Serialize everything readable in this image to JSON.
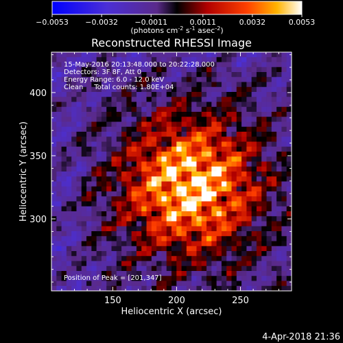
{
  "chart_data": {
    "type": "heatmap",
    "title": "Reconstructed RHESSI Image",
    "xlabel": "Heliocentric X (arcsec)",
    "ylabel": "Heliocentric Y (arcsec)",
    "xlim": [
      102,
      290
    ],
    "ylim": [
      243,
      432
    ],
    "x_ticks": [
      150,
      200,
      250
    ],
    "x_tick_labels": [
      "150",
      "200",
      "250"
    ],
    "y_ticks": [
      300,
      350,
      400
    ],
    "y_tick_labels": [
      "300",
      "350",
      "400"
    ],
    "colorbar": {
      "min": -0.0053,
      "max": 0.0053,
      "tick_values": [
        -0.0053,
        -0.0032,
        -0.0011,
        0.0011,
        0.0032,
        0.0053
      ],
      "tick_labels": [
        "−0.0053",
        "−0.0032",
        "−0.0011",
        "0.0011",
        "0.0032",
        "0.0053"
      ],
      "unit_main": "(photons cm",
      "unit_sup1": "-2",
      "unit_mid": " s",
      "unit_sup2": "-1",
      "unit_end": " asec",
      "unit_sup3": "-2",
      "unit_close": ")",
      "colors": [
        "#0000ff",
        "#5b2fd0",
        "#6a2a9a",
        "#000000",
        "#b40000",
        "#ff3b00",
        "#ffae00",
        "#ffffff"
      ]
    },
    "annotations": [
      "15-May-2016 20:13:48.000 to 20:22:28.000",
      "Detectors: 3F 8F, Att 0",
      "Energy Range: 6.0 - 12.0 keV",
      "Clean     Total counts: 1.80E+04"
    ],
    "peak_label": "Position of Peak = [201,347]",
    "peak_position": [
      201,
      347
    ],
    "image_grid": {
      "nx": 48,
      "ny": 48
    }
  },
  "footer": {
    "date": "4-Apr-2018 21:36"
  }
}
